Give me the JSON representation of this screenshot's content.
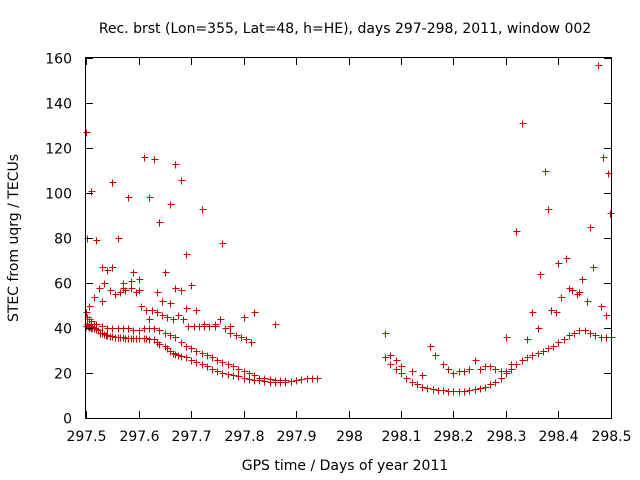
{
  "chart_data": {
    "type": "scatter",
    "title": "Rec. brst (Lon=355, Lat=48, h=HE), days 297-298, 2011, window 002",
    "xlabel": "GPS time / Days of year 2011",
    "ylabel": "STEC from uqrg / TECUs",
    "xlim": [
      297.5,
      298.5
    ],
    "ylim": [
      0,
      160
    ],
    "x_ticks": [
      297.5,
      297.6,
      297.7,
      297.8,
      297.9,
      298,
      298.1,
      298.2,
      298.3,
      298.4,
      298.5
    ],
    "x_tick_labels": [
      "297.5",
      "297.6",
      "297.7",
      "297.8",
      "297.9",
      "298",
      "298.1",
      "298.2",
      "298.3",
      "298.4",
      "298.5"
    ],
    "y_ticks": [
      0,
      20,
      40,
      60,
      80,
      100,
      120,
      140,
      160
    ],
    "y_tick_labels": [
      "0",
      "20",
      "40",
      "60",
      "80",
      "100",
      "120",
      "140",
      "160"
    ],
    "grid": false,
    "marker": "+",
    "color": "#cc0000",
    "series": [
      {
        "name": "STEC",
        "x": [
          297.5,
          297.501,
          297.503,
          297.505,
          297.508,
          297.51,
          297.512,
          297.515,
          297.52,
          297.523,
          297.527,
          297.53,
          297.535,
          297.538,
          297.54,
          297.545,
          297.55,
          297.555,
          297.56,
          297.565,
          297.57,
          297.575,
          297.58,
          297.585,
          297.59,
          297.595,
          297.6,
          297.61,
          297.615,
          297.62,
          297.63,
          297.635,
          297.64,
          297.65,
          297.655,
          297.66,
          297.665,
          297.67,
          297.675,
          297.68,
          297.69,
          297.7,
          297.71,
          297.72,
          297.73,
          297.74,
          297.75,
          297.76,
          297.77,
          297.78,
          297.79,
          297.8,
          297.81,
          297.82,
          297.83,
          297.84,
          297.85,
          297.86,
          297.87,
          297.88,
          297.89,
          297.9,
          297.91,
          297.92,
          297.93,
          297.94,
          297.5,
          297.502,
          297.505,
          297.51,
          297.515,
          297.52,
          297.53,
          297.54,
          297.55,
          297.56,
          297.57,
          297.58,
          297.59,
          297.6,
          297.61,
          297.62,
          297.63,
          297.64,
          297.65,
          297.66,
          297.67,
          297.68,
          297.69,
          297.7,
          297.71,
          297.72,
          297.73,
          297.74,
          297.75,
          297.76,
          297.77,
          297.78,
          297.79,
          297.8,
          297.81,
          297.82,
          297.83,
          297.84,
          297.85,
          297.86,
          297.87,
          297.88,
          297.505,
          297.515,
          297.525,
          297.535,
          297.545,
          297.555,
          297.565,
          297.575,
          297.585,
          297.595,
          297.605,
          297.615,
          297.625,
          297.635,
          297.645,
          297.655,
          297.665,
          297.675,
          297.685,
          297.695,
          297.705,
          297.715,
          297.725,
          297.735,
          297.745,
          297.755,
          297.765,
          297.775,
          297.785,
          297.795,
          297.805,
          297.815,
          297.5,
          297.502,
          297.51,
          297.52,
          297.53,
          297.55,
          297.57,
          297.585,
          297.6,
          297.62,
          297.635,
          297.645,
          297.66,
          297.67,
          297.68,
          297.69,
          297.71,
          297.725,
          297.745,
          297.775,
          297.53,
          297.54,
          297.55,
          297.56,
          297.57,
          297.58,
          297.59,
          297.6,
          297.61,
          297.62,
          297.63,
          297.64,
          297.65,
          297.66,
          297.67,
          297.68,
          297.69,
          297.7,
          297.72,
          297.76,
          297.8,
          297.82,
          297.86,
          298.07,
          298.08,
          298.09,
          298.1,
          298.11,
          298.12,
          298.13,
          298.14,
          298.15,
          298.16,
          298.17,
          298.18,
          298.19,
          298.2,
          298.21,
          298.22,
          298.23,
          298.24,
          298.25,
          298.26,
          298.27,
          298.28,
          298.29,
          298.3,
          298.31,
          298.32,
          298.33,
          298.34,
          298.35,
          298.36,
          298.37,
          298.38,
          298.39,
          298.4,
          298.41,
          298.42,
          298.43,
          298.44,
          298.45,
          298.46,
          298.47,
          298.48,
          298.49,
          298.5,
          298.07,
          298.08,
          298.09,
          298.1,
          298.12,
          298.14,
          298.155,
          298.165,
          298.18,
          298.19,
          298.2,
          298.21,
          298.22,
          298.23,
          298.24,
          298.25,
          298.26,
          298.27,
          298.28,
          298.29,
          298.3,
          298.31,
          298.33,
          298.35,
          298.365,
          298.375,
          298.385,
          298.395,
          298.405,
          298.415,
          298.425,
          298.435,
          298.445,
          298.455,
          298.465,
          298.475,
          298.485,
          298.495,
          298.498,
          298.3,
          298.32,
          298.34,
          298.36,
          298.38,
          298.4,
          298.42,
          298.44,
          298.46,
          298.48,
          298.49
        ],
        "y": [
          41,
          42,
          41,
          40.5,
          41,
          40,
          40.5,
          40,
          39.5,
          39,
          38,
          38,
          37.5,
          37,
          37,
          36.5,
          36.5,
          36,
          36,
          36,
          36,
          35.5,
          35.5,
          35.5,
          35.5,
          35.5,
          35.5,
          35.5,
          35.5,
          35,
          35,
          34,
          33,
          32,
          31,
          30,
          29,
          28.5,
          28,
          27.5,
          27,
          26,
          25,
          24,
          23,
          22,
          21,
          20,
          19.5,
          19,
          18.5,
          18,
          17.5,
          17,
          17,
          16.5,
          16,
          16,
          16,
          16,
          16.5,
          17,
          17.5,
          18,
          18,
          18,
          47,
          45,
          44,
          43,
          42,
          42,
          41,
          40,
          40,
          40,
          40,
          40,
          39,
          39,
          40,
          40,
          40,
          39,
          38,
          37,
          36,
          34,
          32,
          31,
          30,
          29,
          28,
          27,
          26,
          25,
          24,
          23,
          22,
          21,
          20,
          19,
          18,
          18,
          17.5,
          17,
          17,
          17,
          50,
          54,
          58,
          60,
          57,
          55,
          56,
          57,
          58,
          56,
          50,
          48,
          48,
          47,
          46,
          45,
          44,
          46,
          44,
          41,
          41,
          41,
          41,
          41,
          42,
          44,
          40,
          38,
          37,
          36,
          35,
          34,
          127,
          80,
          101,
          79,
          67,
          67,
          58,
          61,
          57,
          44,
          56,
          52,
          51,
          58,
          57,
          49,
          48,
          42,
          41,
          41,
          52,
          66,
          105,
          80,
          60,
          98,
          65,
          62,
          116,
          98,
          115,
          87,
          65,
          95,
          113,
          106,
          73,
          59,
          93,
          78,
          45,
          47,
          42,
          27,
          24,
          22,
          20,
          18,
          16,
          15,
          14,
          13.5,
          13,
          12.5,
          12.5,
          12,
          12,
          12,
          12,
          12.5,
          13,
          13.5,
          14,
          15,
          16,
          18,
          20,
          22,
          24,
          26,
          27,
          28,
          29,
          30,
          31,
          32,
          34,
          35,
          37,
          38,
          39,
          39,
          38,
          37,
          36,
          36,
          36,
          38,
          28,
          26,
          23,
          21,
          19,
          32,
          28,
          24,
          22,
          20,
          21,
          21,
          22,
          26,
          22,
          23,
          23,
          22,
          21,
          21,
          24,
          131,
          47,
          64,
          110,
          48,
          47,
          54,
          71,
          57,
          55,
          62,
          52,
          67,
          157,
          116,
          109,
          91,
          36,
          83,
          35,
          40,
          93,
          69,
          58,
          56,
          85,
          50,
          46
        ]
      }
    ]
  }
}
